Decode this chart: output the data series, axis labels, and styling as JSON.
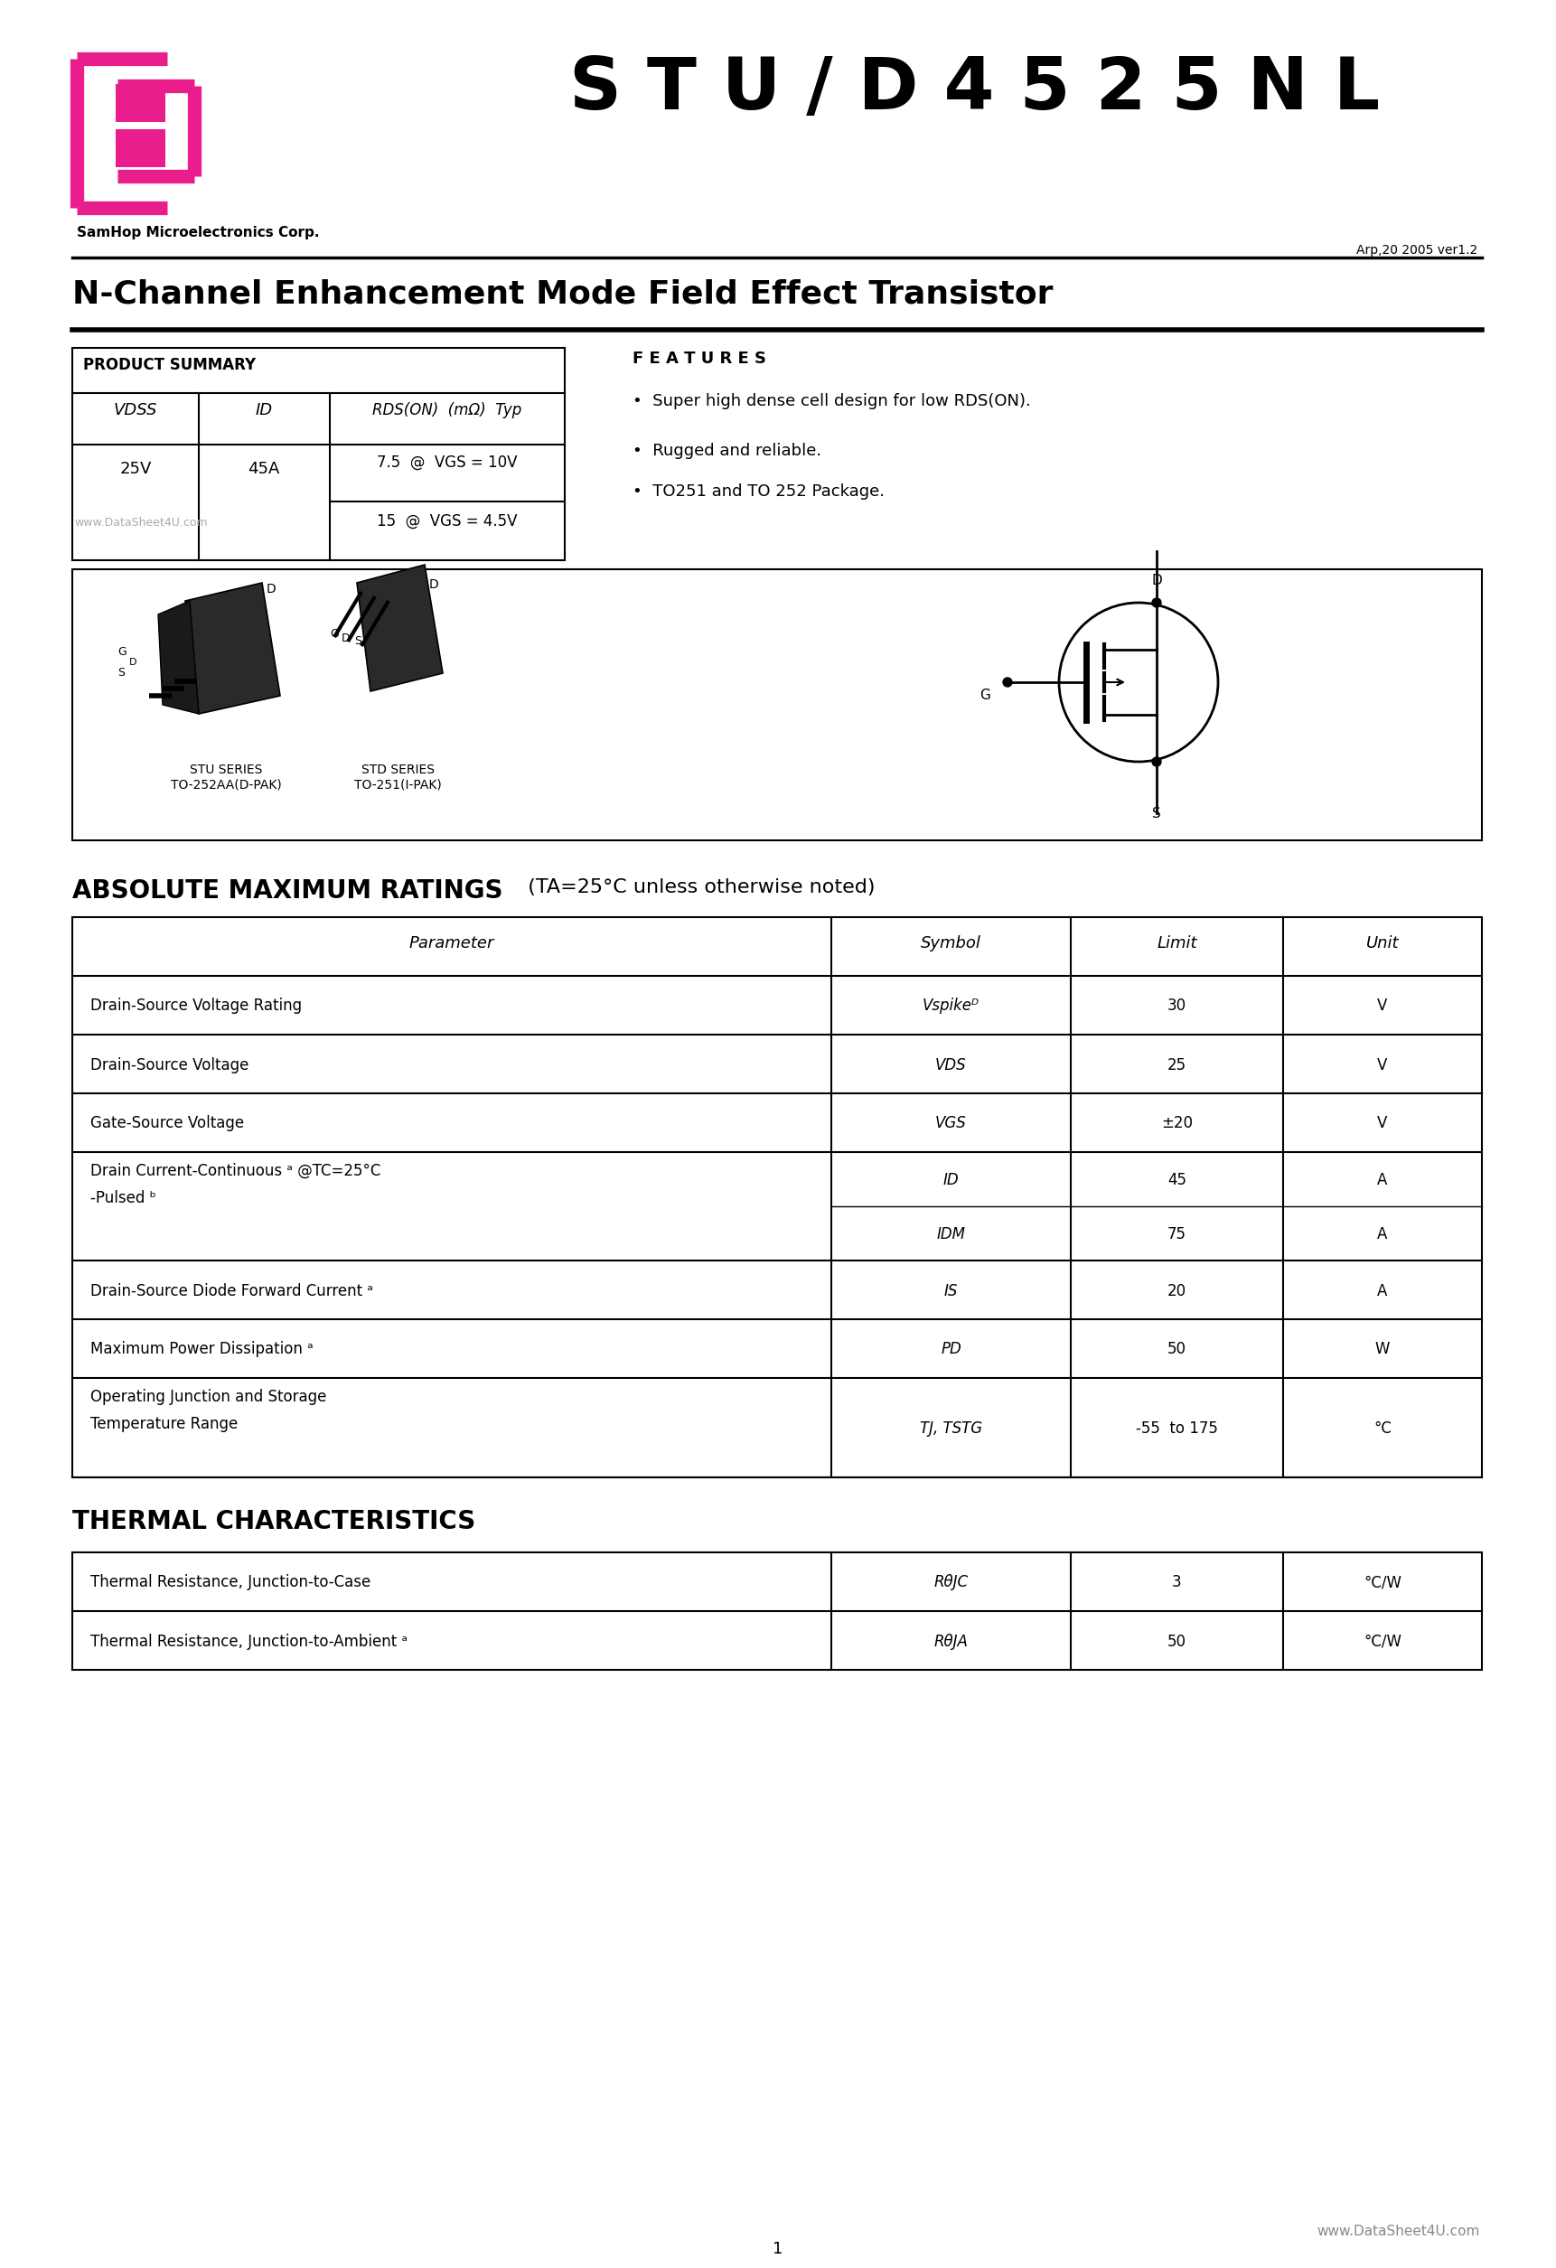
{
  "bg_color": "#ffffff",
  "text_color": "#000000",
  "pink_color": "#E91E8C",
  "title_part": "S T U / D 4 5 2 5 N L",
  "company": "SamHop Microelectronics Corp.",
  "version": "Arp,20 2005 ver1.2",
  "subtitle": "N-Channel Enhancement Mode Field Effect Transistor",
  "product_summary_header": "PRODUCT SUMMARY",
  "ps_col1_header": "VDSS",
  "ps_col2_header": "ID",
  "ps_col3_header": "RDS(ON)  (mΩ)  Typ",
  "ps_col1_val": "25V",
  "ps_col2_val": "45A",
  "ps_rds1": "7.5  @  VGS = 10V",
  "ps_rds2": "15  @  VGS = 4.5V",
  "features_header": "F E A T U R E S",
  "feature1": "Super high dense cell design for low RDS(ON).",
  "feature2": "Rugged and reliable.",
  "feature3": "TO251 and TO 252 Package.",
  "pkg_label1": "STU SERIES\nTO-252AA(D-PAK)",
  "pkg_label2": "STD SERIES\nTO-251(I-PAK)",
  "abs_max_title": "ABSOLUTE MAXIMUM RATINGS",
  "abs_max_sub": "  (TA=25°C unless otherwise noted)",
  "abs_table_headers": [
    "Parameter",
    "Symbol",
    "Limit",
    "Unit"
  ],
  "abs_table_rows": [
    [
      "Drain-Source Voltage Rating",
      "Vspikeᴰ",
      "30",
      "V"
    ],
    [
      "Drain-Source Voltage",
      "VDS",
      "25",
      "V"
    ],
    [
      "Gate-Source Voltage",
      "VGS",
      "±20",
      "V"
    ],
    [
      "Drain Current-Continuous ᵃ @TC=25°C\n-Pulsed ᵇ",
      "ID\nIDM",
      "45\n75",
      "A\nA"
    ],
    [
      "Drain-Source Diode Forward Current ᵃ",
      "IS",
      "20",
      "A"
    ],
    [
      "Maximum Power Dissipation ᵃ",
      "PD",
      "50",
      "W"
    ],
    [
      "Operating Junction and Storage\nTemperature Range",
      "TJ, TSTG",
      "-55  to 175",
      "°C"
    ]
  ],
  "thermal_title": "THERMAL CHARACTERISTICS",
  "thermal_rows": [
    [
      "Thermal Resistance, Junction-to-Case",
      "RθJC",
      "3",
      "°C/W"
    ],
    [
      "Thermal Resistance, Junction-to-Ambient ᵃ",
      "RθJA",
      "50",
      "°C/W"
    ]
  ],
  "watermark": "www.DataSheet4U.com",
  "page_num": "1",
  "footer": "www.DataSheet4U.com"
}
